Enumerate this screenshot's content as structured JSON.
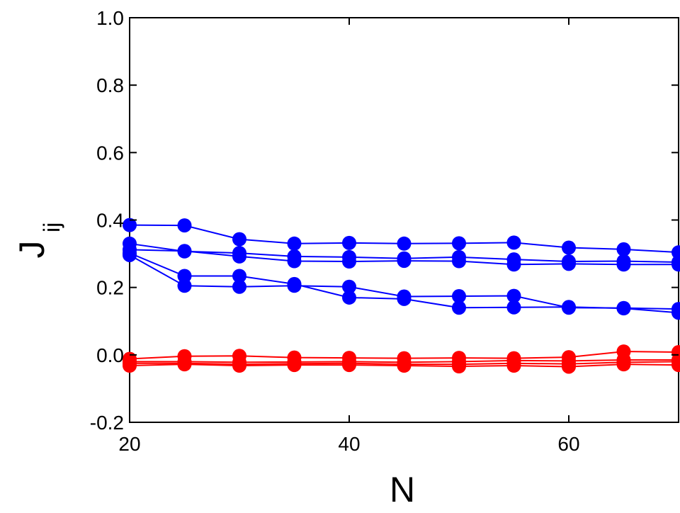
{
  "chart_data": {
    "type": "line",
    "xlabel": "N",
    "ylabel": "J",
    "ylabel_subscript": "ij",
    "x": [
      20,
      25,
      30,
      35,
      40,
      45,
      50,
      55,
      60,
      65,
      70
    ],
    "series": [
      {
        "color": "#0000ff",
        "values": [
          0.385,
          0.384,
          0.343,
          0.33,
          0.332,
          0.33,
          0.331,
          0.333,
          0.318,
          0.313,
          0.304
        ]
      },
      {
        "color": "#0000ff",
        "values": [
          0.33,
          0.307,
          0.302,
          0.292,
          0.29,
          0.286,
          0.29,
          0.283,
          0.277,
          0.278,
          0.275
        ]
      },
      {
        "color": "#0000ff",
        "values": [
          0.312,
          0.308,
          0.292,
          0.278,
          0.277,
          0.279,
          0.278,
          0.268,
          0.27,
          0.268,
          0.268
        ]
      },
      {
        "color": "#0000ff",
        "values": [
          0.302,
          0.234,
          0.234,
          0.21,
          0.17,
          0.166,
          0.14,
          0.141,
          0.142,
          0.138,
          0.125
        ]
      },
      {
        "color": "#0000ff",
        "values": [
          0.296,
          0.205,
          0.202,
          0.205,
          0.202,
          0.173,
          0.174,
          0.175,
          0.14,
          0.139,
          0.136
        ]
      },
      {
        "color": "#ff0000",
        "values": [
          -0.012,
          -0.004,
          -0.003,
          -0.008,
          -0.009,
          -0.01,
          -0.009,
          -0.01,
          -0.007,
          0.01,
          0.008
        ]
      },
      {
        "color": "#ff0000",
        "values": [
          -0.02,
          -0.02,
          -0.022,
          -0.021,
          -0.02,
          -0.022,
          -0.02,
          -0.017,
          -0.018,
          -0.015,
          -0.015
        ]
      },
      {
        "color": "#ff0000",
        "values": [
          -0.025,
          -0.025,
          -0.028,
          -0.026,
          -0.025,
          -0.028,
          -0.028,
          -0.025,
          -0.027,
          -0.022,
          -0.02
        ]
      },
      {
        "color": "#ff0000",
        "values": [
          -0.032,
          -0.028,
          -0.032,
          -0.03,
          -0.03,
          -0.032,
          -0.034,
          -0.032,
          -0.035,
          -0.028,
          -0.03
        ]
      }
    ],
    "xlim": [
      20,
      70
    ],
    "xticks": [
      20,
      40,
      60
    ],
    "ylim": [
      -0.2,
      1.0
    ],
    "yticks": [
      -0.2,
      {
        "value": 0,
        "label": "0.0"
      },
      0.2,
      0.4,
      0.6,
      0.8,
      {
        "value": 1,
        "label": "1.0"
      }
    ]
  }
}
